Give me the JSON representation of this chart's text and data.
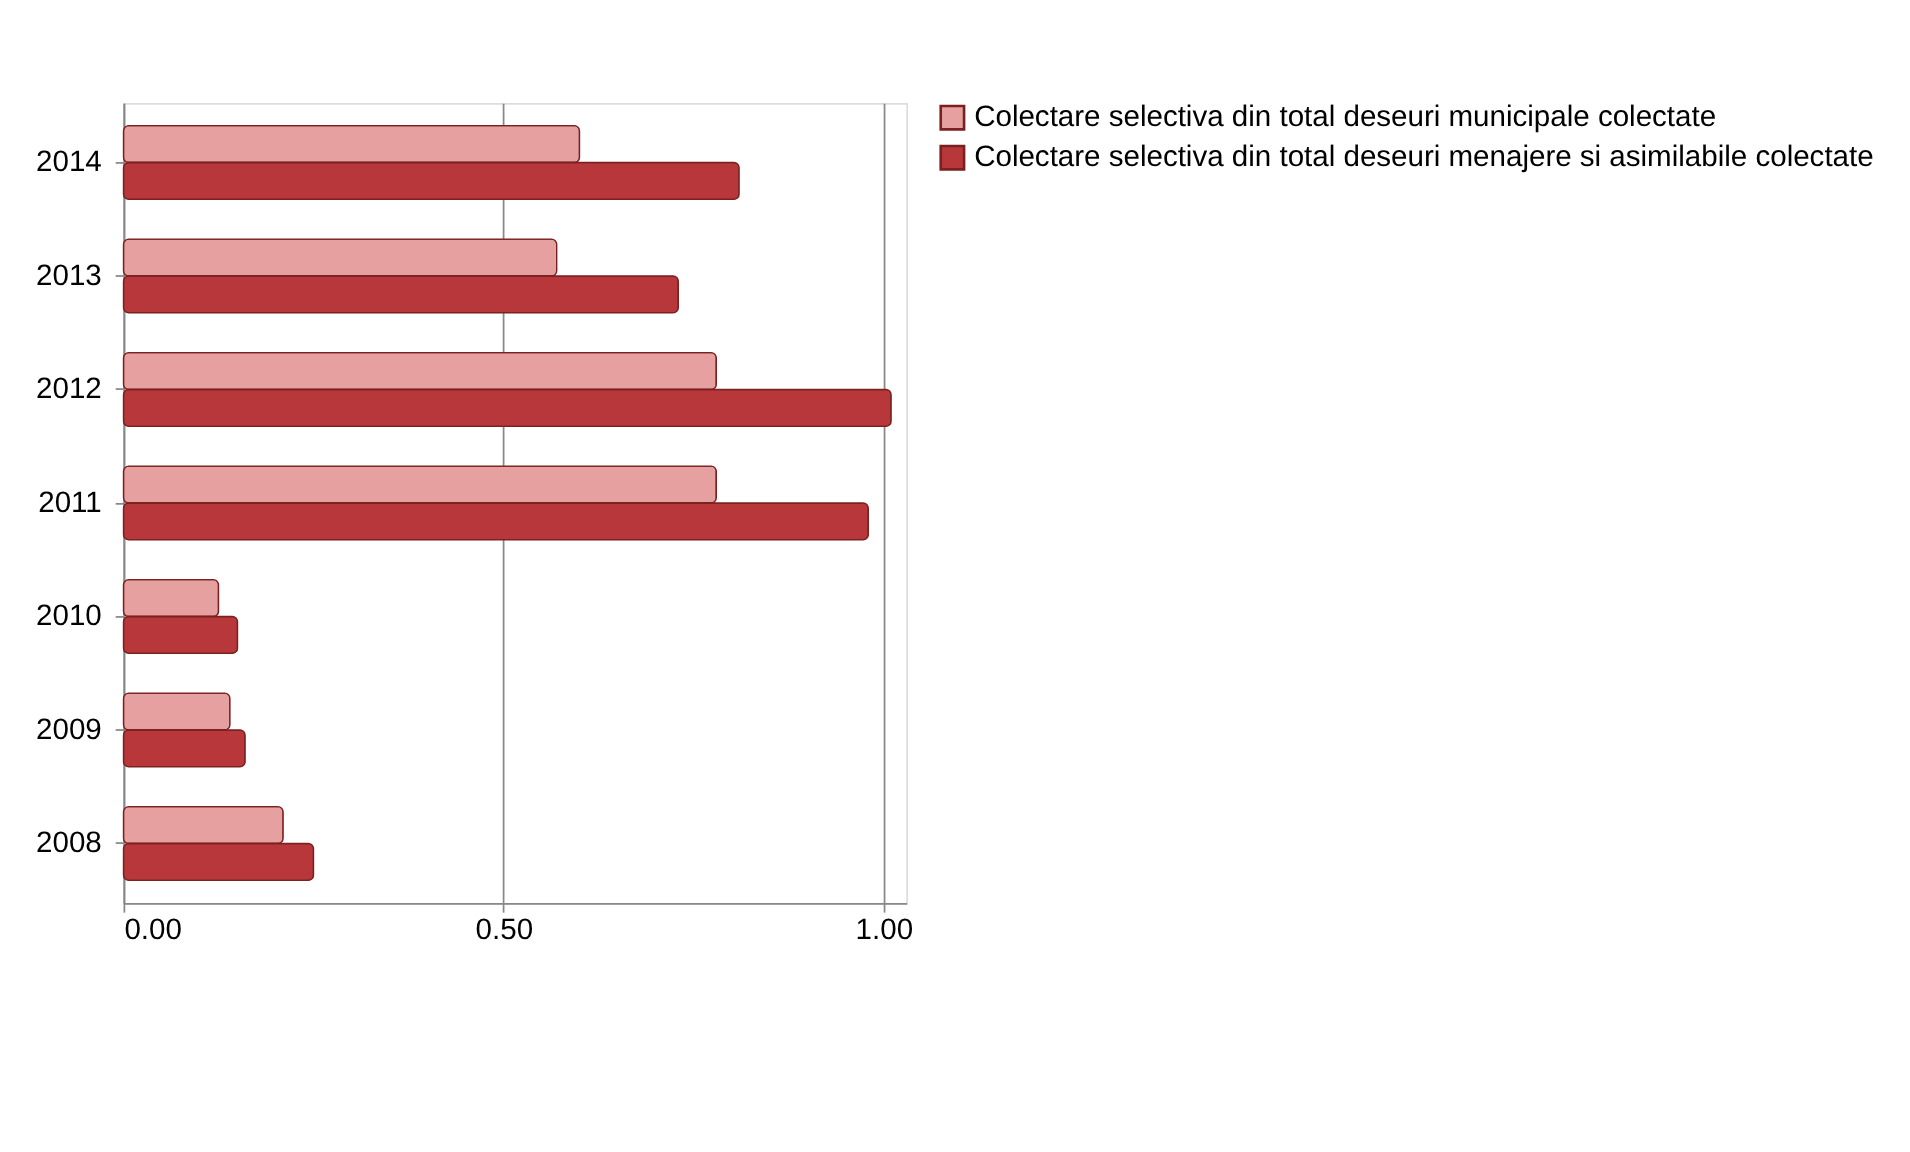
{
  "chart_data": {
    "type": "bar",
    "orientation": "horizontal",
    "categories": [
      "2014",
      "2013",
      "2012",
      "2011",
      "2010",
      "2009",
      "2008"
    ],
    "series": [
      {
        "name": "Colectare selectiva din total deseuri municipale colectate",
        "color": "#e6a0a0",
        "values": [
          0.6,
          0.57,
          0.78,
          0.78,
          0.125,
          0.14,
          0.21
        ]
      },
      {
        "name": "Colectare selectiva din total deseuri menajere si asimilabile colectate",
        "color": "#b8373a",
        "values": [
          0.81,
          0.73,
          1.01,
          0.98,
          0.15,
          0.16,
          0.25
        ]
      }
    ],
    "xlim": [
      0,
      1.03
    ],
    "xticks": [
      {
        "value": 0,
        "label": "0.00"
      },
      {
        "value": 0.5,
        "label": "0.50"
      },
      {
        "value": 1,
        "label": "1.00"
      }
    ],
    "grid": "x",
    "legend": "right"
  }
}
